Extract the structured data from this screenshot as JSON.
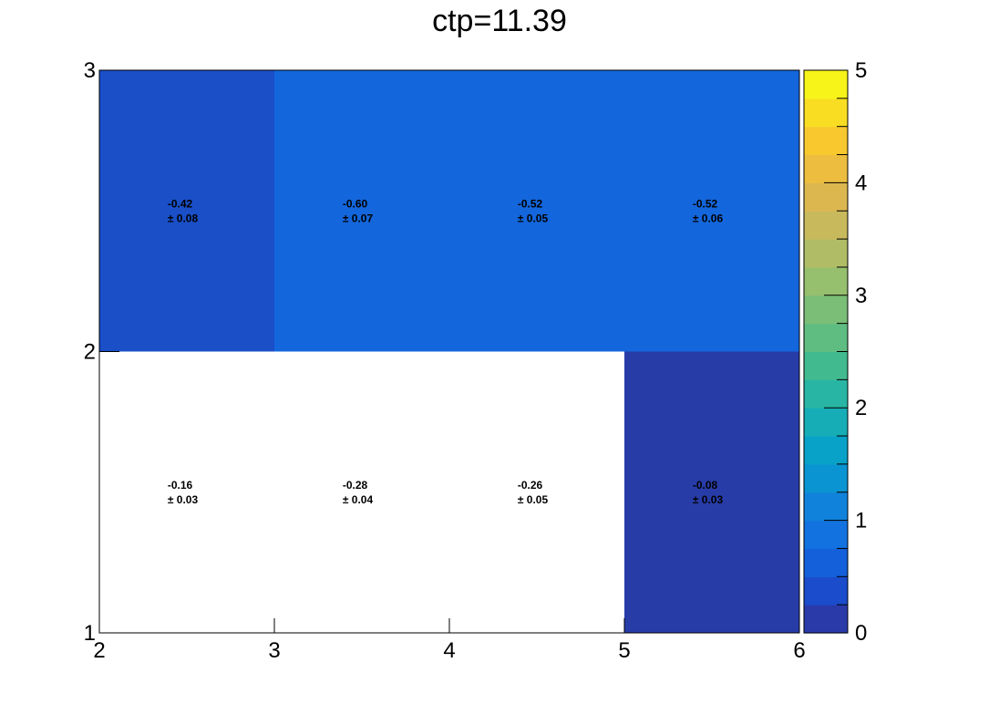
{
  "chart_data": {
    "type": "heatmap",
    "title": "ctp=11.39",
    "x_edges": [
      2,
      3,
      4,
      5,
      6
    ],
    "y_edges": [
      1,
      2,
      3
    ],
    "x_ticks": [
      2,
      3,
      4,
      5,
      6
    ],
    "y_ticks": [
      1,
      2,
      3
    ],
    "zlim": [
      0,
      5
    ],
    "z_ticks": [
      0,
      1,
      2,
      3,
      4,
      5
    ],
    "colorbar_levels": 20,
    "cells": [
      {
        "x": [
          2,
          3
        ],
        "y": [
          2,
          3
        ],
        "value": -0.42,
        "value_label": "-0.42",
        "error_label": "± 0.08",
        "fill": "#1a4fc8"
      },
      {
        "x": [
          3,
          4
        ],
        "y": [
          2,
          3
        ],
        "value": -0.6,
        "value_label": "-0.60",
        "error_label": "± 0.07",
        "fill": "#1366dc"
      },
      {
        "x": [
          4,
          5
        ],
        "y": [
          2,
          3
        ],
        "value": -0.52,
        "value_label": "-0.52",
        "error_label": "± 0.05",
        "fill": "#1366dc"
      },
      {
        "x": [
          5,
          6
        ],
        "y": [
          2,
          3
        ],
        "value": -0.52,
        "value_label": "-0.52",
        "error_label": "± 0.06",
        "fill": "#1366dc"
      },
      {
        "x": [
          2,
          3
        ],
        "y": [
          1,
          2
        ],
        "value": -0.16,
        "value_label": "-0.16",
        "error_label": "± 0.03",
        "fill": "#ffffff"
      },
      {
        "x": [
          3,
          4
        ],
        "y": [
          1,
          2
        ],
        "value": -0.28,
        "value_label": "-0.28",
        "error_label": "± 0.04",
        "fill": "#ffffff"
      },
      {
        "x": [
          4,
          5
        ],
        "y": [
          1,
          2
        ],
        "value": -0.26,
        "value_label": "-0.26",
        "error_label": "± 0.05",
        "fill": "#ffffff"
      },
      {
        "x": [
          5,
          6
        ],
        "y": [
          1,
          2
        ],
        "value": -0.08,
        "value_label": "-0.08",
        "error_label": "± 0.03",
        "fill": "#283ca8"
      }
    ],
    "palette": [
      "#2a3aa8",
      "#1a4ccc",
      "#1460da",
      "#1272e0",
      "#1082db",
      "#0a94d2",
      "#08a2c8",
      "#16adb7",
      "#28b5a4",
      "#42ba90",
      "#5fbd82",
      "#7abe78",
      "#96bf6e",
      "#b0bd66",
      "#c8ba5c",
      "#dcb750",
      "#ecbd3e",
      "#f8c82e",
      "#f9dd22",
      "#f7f41a"
    ]
  }
}
